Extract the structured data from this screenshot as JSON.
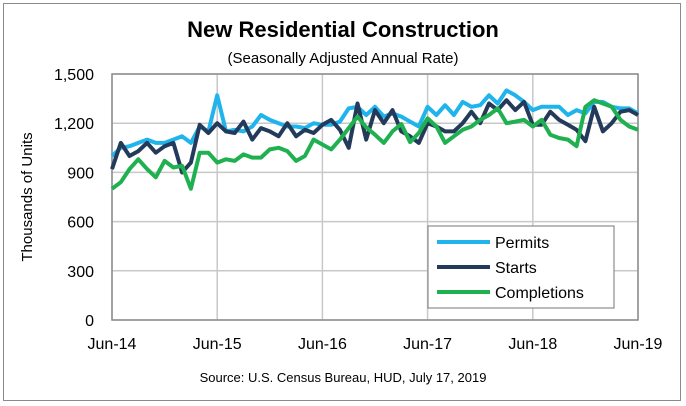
{
  "chart_data": {
    "type": "line",
    "title": "New Residential Construction",
    "subtitle": "(Seasonally Adjusted Annual Rate)",
    "ylabel": "Thousands of Units",
    "xlabel": "",
    "source": "Source:  U.S. Census Bureau, HUD, July 17, 2019",
    "ylim": [
      0,
      1500
    ],
    "yticks": [
      "0",
      "300",
      "600",
      "900",
      "1,200",
      "1,500"
    ],
    "ytick_values": [
      0,
      300,
      600,
      900,
      1200,
      1500
    ],
    "xticks": [
      "Jun-14",
      "Jun-15",
      "Jun-16",
      "Jun-17",
      "Jun-18",
      "Jun-19"
    ],
    "xtick_index": [
      0,
      12,
      24,
      36,
      48,
      60
    ],
    "grid": true,
    "legend_position": "bottom-right",
    "series": [
      {
        "name": "Permits",
        "color": "#1fb4ec",
        "values": [
          1000,
          1050,
          1060,
          1080,
          1100,
          1080,
          1080,
          1100,
          1120,
          1080,
          1180,
          1150,
          1370,
          1150,
          1160,
          1150,
          1180,
          1250,
          1220,
          1200,
          1180,
          1180,
          1170,
          1200,
          1190,
          1190,
          1210,
          1290,
          1300,
          1250,
          1300,
          1240,
          1260,
          1240,
          1210,
          1180,
          1300,
          1250,
          1310,
          1250,
          1330,
          1300,
          1310,
          1370,
          1320,
          1400,
          1370,
          1330,
          1280,
          1300,
          1300,
          1300,
          1250,
          1280,
          1260,
          1330,
          1330,
          1300,
          1290,
          1290,
          1260
        ]
      },
      {
        "name": "Starts",
        "color": "#243a5a",
        "values": [
          920,
          1080,
          1000,
          1030,
          1080,
          1020,
          1060,
          1080,
          900,
          960,
          1190,
          1140,
          1200,
          1150,
          1140,
          1210,
          1100,
          1170,
          1150,
          1120,
          1200,
          1120,
          1160,
          1140,
          1190,
          1220,
          1160,
          1050,
          1320,
          1100,
          1280,
          1200,
          1280,
          1150,
          1120,
          1080,
          1200,
          1180,
          1150,
          1150,
          1200,
          1270,
          1200,
          1320,
          1280,
          1340,
          1280,
          1330,
          1190,
          1190,
          1270,
          1220,
          1190,
          1160,
          1090,
          1300,
          1150,
          1200,
          1270,
          1280,
          1250
        ]
      },
      {
        "name": "Completions",
        "color": "#1fb050",
        "values": [
          800,
          840,
          920,
          980,
          920,
          870,
          970,
          930,
          940,
          800,
          1020,
          1020,
          960,
          980,
          970,
          1010,
          990,
          990,
          1040,
          1050,
          1030,
          970,
          1000,
          1100,
          1070,
          1040,
          1100,
          1170,
          1240,
          1175,
          1130,
          1080,
          1150,
          1195,
          1085,
          1140,
          1230,
          1180,
          1080,
          1120,
          1160,
          1180,
          1220,
          1250,
          1290,
          1200,
          1210,
          1220,
          1180,
          1220,
          1130,
          1110,
          1100,
          1060,
          1300,
          1340,
          1320,
          1300,
          1220,
          1180,
          1160
        ]
      }
    ]
  }
}
